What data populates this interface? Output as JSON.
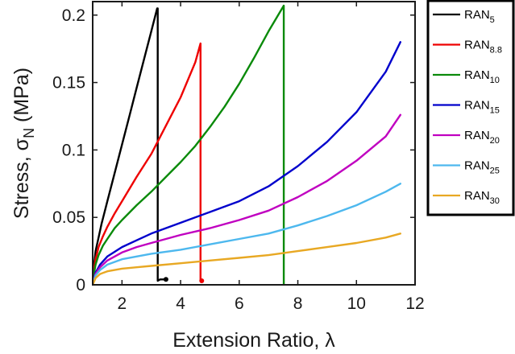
{
  "chart_data": {
    "type": "line",
    "xlabel": "Extension Ratio, λ",
    "ylabel": "Stress, σ",
    "ylabel_sub": "N",
    "ylabel_unit": " (MPa)",
    "xlim": [
      1,
      12
    ],
    "ylim": [
      0,
      0.21
    ],
    "xticks": [
      2,
      4,
      6,
      8,
      10,
      12
    ],
    "yticks": [
      0,
      0.05,
      0.1,
      0.15,
      0.2
    ],
    "ytick_labels": [
      "0",
      "0.05",
      "0.1",
      "0.15",
      "0.2"
    ],
    "grid": false,
    "legend_position": "outside-right-top",
    "series": [
      {
        "name": "RAN",
        "sub": "5",
        "color": "#000000",
        "x": [
          1,
          1.05,
          1.1,
          1.2,
          1.3,
          1.5,
          1.75,
          2.0,
          2.25,
          2.5,
          2.75,
          3.0,
          3.2,
          3.22,
          3.22,
          3.3,
          3.5
        ],
        "y": [
          0,
          0.015,
          0.025,
          0.035,
          0.045,
          0.062,
          0.083,
          0.104,
          0.125,
          0.146,
          0.167,
          0.188,
          0.205,
          0.205,
          0.003,
          0.004,
          0.004
        ]
      },
      {
        "name": "RAN",
        "sub": "8.8",
        "color": "#ee0000",
        "x": [
          1,
          1.05,
          1.1,
          1.2,
          1.35,
          1.5,
          1.75,
          2.0,
          2.5,
          3.0,
          3.5,
          4.0,
          4.5,
          4.68,
          4.68,
          4.72
        ],
        "y": [
          0,
          0.012,
          0.019,
          0.028,
          0.036,
          0.043,
          0.053,
          0.062,
          0.08,
          0.097,
          0.118,
          0.139,
          0.165,
          0.179,
          0.003,
          0.003
        ]
      },
      {
        "name": "RAN",
        "sub": "10",
        "color": "#0a8a0a",
        "x": [
          1,
          1.05,
          1.1,
          1.2,
          1.35,
          1.5,
          1.75,
          2.0,
          2.5,
          3.0,
          3.5,
          4.0,
          4.5,
          5.0,
          5.5,
          6.0,
          6.5,
          7.0,
          7.52,
          7.52
        ],
        "y": [
          0,
          0.009,
          0.015,
          0.022,
          0.029,
          0.034,
          0.042,
          0.048,
          0.059,
          0.069,
          0.08,
          0.091,
          0.103,
          0.117,
          0.132,
          0.149,
          0.168,
          0.188,
          0.207,
          0
        ]
      },
      {
        "name": "RAN",
        "sub": "15",
        "color": "#0000cc",
        "x": [
          1,
          1.1,
          1.25,
          1.5,
          2.0,
          2.5,
          3.0,
          4.0,
          5.0,
          6.0,
          7.0,
          8.0,
          9.0,
          10.0,
          11.0,
          11.5
        ],
        "y": [
          0,
          0.009,
          0.015,
          0.021,
          0.028,
          0.033,
          0.038,
          0.046,
          0.054,
          0.062,
          0.073,
          0.088,
          0.106,
          0.128,
          0.158,
          0.18
        ]
      },
      {
        "name": "RAN",
        "sub": "20",
        "color": "#c000c0",
        "x": [
          1,
          1.1,
          1.25,
          1.5,
          2.0,
          2.5,
          3.0,
          4.0,
          5.0,
          6.0,
          7.0,
          8.0,
          9.0,
          10.0,
          11.0,
          11.5
        ],
        "y": [
          0,
          0.008,
          0.013,
          0.018,
          0.024,
          0.028,
          0.031,
          0.037,
          0.042,
          0.048,
          0.055,
          0.065,
          0.077,
          0.092,
          0.11,
          0.126
        ]
      },
      {
        "name": "RAN",
        "sub": "25",
        "color": "#4db8ee",
        "x": [
          1,
          1.1,
          1.25,
          1.5,
          2.0,
          2.5,
          3.0,
          4.0,
          5.0,
          6.0,
          7.0,
          8.0,
          9.0,
          10.0,
          11.0,
          11.5
        ],
        "y": [
          0,
          0.007,
          0.011,
          0.015,
          0.019,
          0.021,
          0.023,
          0.026,
          0.03,
          0.034,
          0.038,
          0.044,
          0.051,
          0.059,
          0.069,
          0.075
        ]
      },
      {
        "name": "RAN",
        "sub": "30",
        "color": "#e8a823",
        "x": [
          1,
          1.1,
          1.25,
          1.5,
          2.0,
          2.5,
          3.0,
          4.0,
          5.0,
          6.0,
          7.0,
          8.0,
          9.0,
          10.0,
          11.0,
          11.5
        ],
        "y": [
          0,
          0.005,
          0.008,
          0.01,
          0.012,
          0.013,
          0.014,
          0.016,
          0.018,
          0.02,
          0.022,
          0.025,
          0.028,
          0.031,
          0.035,
          0.038
        ]
      }
    ],
    "endpoint_markers": [
      {
        "series": 0,
        "x": 3.5,
        "y": 0.004
      },
      {
        "series": 1,
        "x": 4.72,
        "y": 0.003
      }
    ]
  }
}
